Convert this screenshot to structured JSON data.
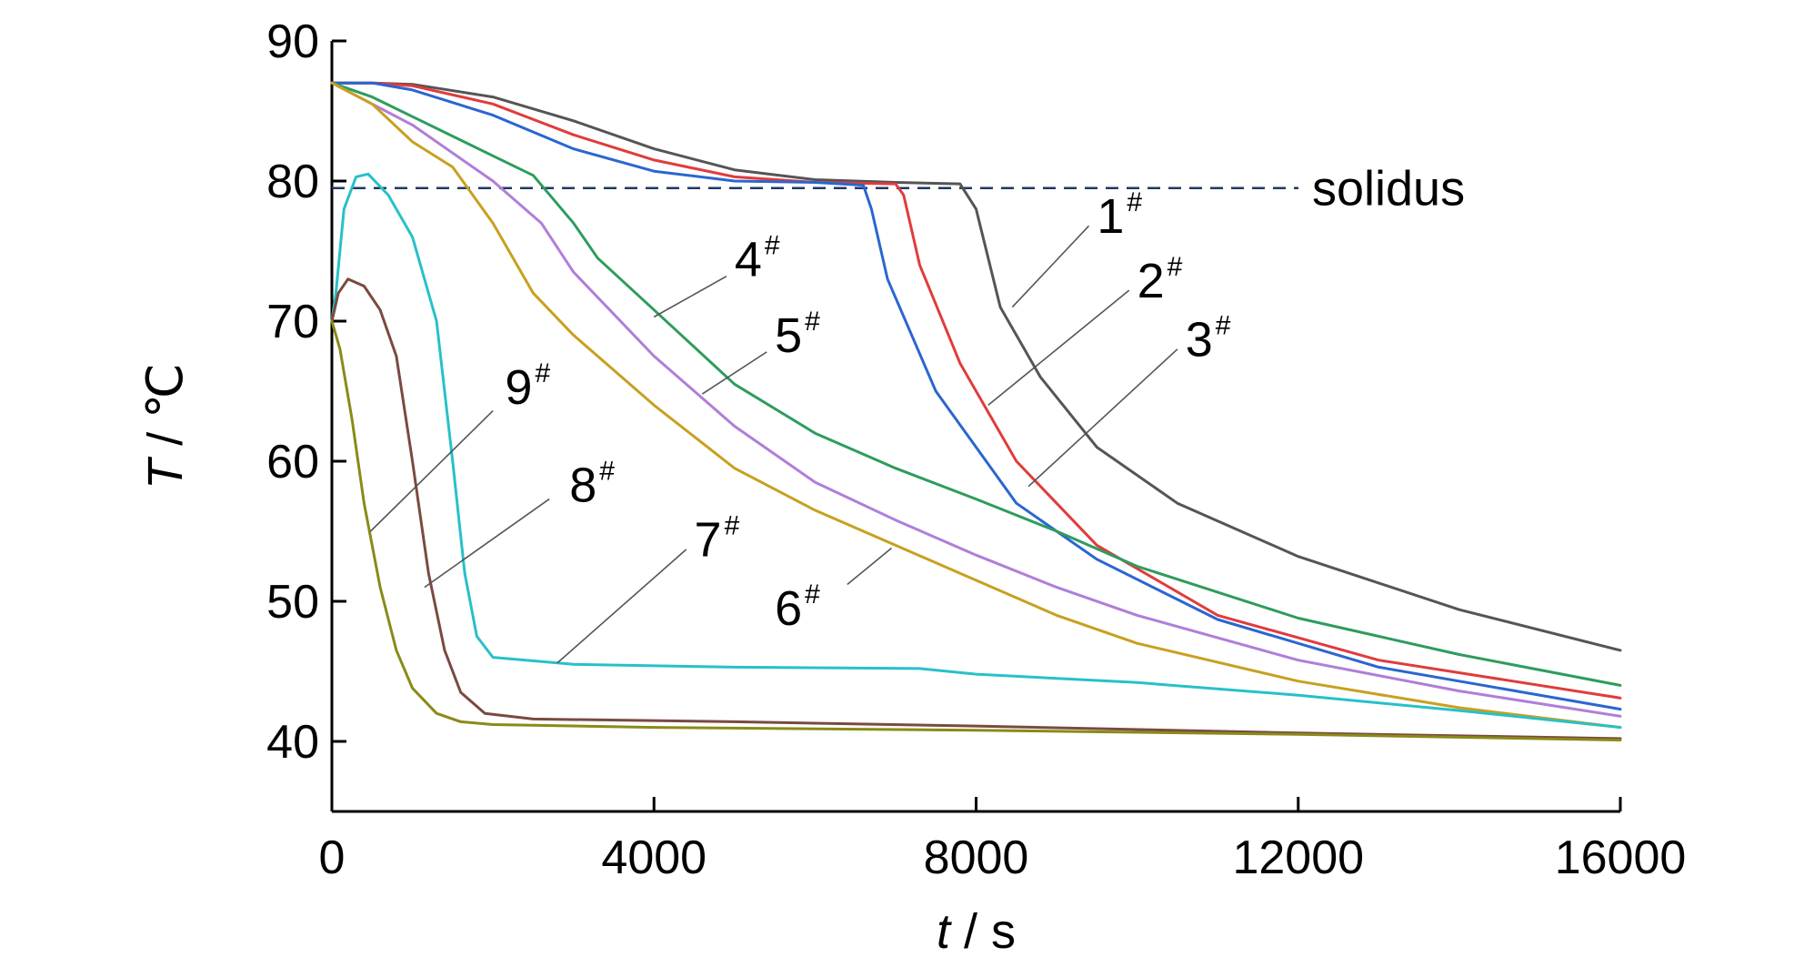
{
  "chart_data": {
    "type": "line",
    "title": "",
    "xlabel": {
      "var": "t",
      "unit": "s"
    },
    "ylabel": {
      "var": "T",
      "unit": "℃"
    },
    "xlim": [
      0,
      16000
    ],
    "ylim": [
      35,
      90
    ],
    "x_ticks": [
      0,
      4000,
      8000,
      12000,
      16000
    ],
    "y_ticks": [
      40,
      50,
      60,
      70,
      80,
      90
    ],
    "grid": false,
    "solidus": {
      "label": "solidus",
      "value": 79.5,
      "color": "#1f3864"
    },
    "series": [
      {
        "name": "1#",
        "color": "#555555",
        "points": [
          [
            0,
            87
          ],
          [
            500,
            87
          ],
          [
            1000,
            86.9
          ],
          [
            2000,
            86
          ],
          [
            3000,
            84.3
          ],
          [
            4000,
            82.3
          ],
          [
            5000,
            80.8
          ],
          [
            6000,
            80.1
          ],
          [
            7000,
            79.9
          ],
          [
            7800,
            79.8
          ],
          [
            8000,
            78
          ],
          [
            8300,
            71
          ],
          [
            8800,
            66
          ],
          [
            9500,
            61
          ],
          [
            10500,
            57
          ],
          [
            12000,
            53.2
          ],
          [
            14000,
            49.4
          ],
          [
            16000,
            46.5
          ]
        ]
      },
      {
        "name": "2#",
        "color": "#e03c3c",
        "points": [
          [
            0,
            87
          ],
          [
            500,
            87
          ],
          [
            1000,
            86.8
          ],
          [
            2000,
            85.5
          ],
          [
            3000,
            83.3
          ],
          [
            4000,
            81.5
          ],
          [
            5000,
            80.3
          ],
          [
            6000,
            79.9
          ],
          [
            7000,
            79.8
          ],
          [
            7100,
            79
          ],
          [
            7300,
            74
          ],
          [
            7800,
            67
          ],
          [
            8500,
            60
          ],
          [
            9500,
            54
          ],
          [
            11000,
            49
          ],
          [
            13000,
            45.8
          ],
          [
            16000,
            43.1
          ]
        ]
      },
      {
        "name": "3#",
        "color": "#2a66d0",
        "points": [
          [
            0,
            87
          ],
          [
            500,
            87
          ],
          [
            1000,
            86.5
          ],
          [
            2000,
            84.7
          ],
          [
            3000,
            82.3
          ],
          [
            4000,
            80.7
          ],
          [
            5000,
            80
          ],
          [
            6000,
            79.9
          ],
          [
            6600,
            79.7
          ],
          [
            6700,
            78
          ],
          [
            6900,
            73
          ],
          [
            7500,
            65
          ],
          [
            8500,
            57
          ],
          [
            9500,
            53
          ],
          [
            11000,
            48.7
          ],
          [
            13000,
            45.3
          ],
          [
            16000,
            42.3
          ]
        ]
      },
      {
        "name": "4#",
        "color": "#2e9c5e",
        "points": [
          [
            0,
            87
          ],
          [
            500,
            86
          ],
          [
            1000,
            84.6
          ],
          [
            2000,
            81.8
          ],
          [
            2500,
            80.4
          ],
          [
            3000,
            77
          ],
          [
            3300,
            74.5
          ],
          [
            4000,
            70.8
          ],
          [
            5000,
            65.5
          ],
          [
            6000,
            62
          ],
          [
            7000,
            59.5
          ],
          [
            8000,
            57.3
          ],
          [
            9000,
            55
          ],
          [
            10000,
            52.5
          ],
          [
            12000,
            48.8
          ],
          [
            14000,
            46.2
          ],
          [
            16000,
            44
          ]
        ]
      },
      {
        "name": "5#",
        "color": "#b07ed8",
        "points": [
          [
            0,
            87
          ],
          [
            500,
            85.5
          ],
          [
            1000,
            84
          ],
          [
            1500,
            82
          ],
          [
            2000,
            80
          ],
          [
            2600,
            77
          ],
          [
            3000,
            73.5
          ],
          [
            4000,
            67.5
          ],
          [
            5000,
            62.5
          ],
          [
            6000,
            58.5
          ],
          [
            7000,
            55.8
          ],
          [
            8000,
            53.3
          ],
          [
            9000,
            51
          ],
          [
            10000,
            49
          ],
          [
            12000,
            45.8
          ],
          [
            14000,
            43.6
          ],
          [
            16000,
            41.8
          ]
        ]
      },
      {
        "name": "6#",
        "color": "#c8a020",
        "points": [
          [
            0,
            87
          ],
          [
            500,
            85.5
          ],
          [
            1000,
            82.8
          ],
          [
            1500,
            81
          ],
          [
            2000,
            77
          ],
          [
            2500,
            72
          ],
          [
            3000,
            69
          ],
          [
            4000,
            64
          ],
          [
            5000,
            59.5
          ],
          [
            6000,
            56.5
          ],
          [
            7000,
            54
          ],
          [
            8000,
            51.5
          ],
          [
            9000,
            49
          ],
          [
            10000,
            47
          ],
          [
            12000,
            44.3
          ],
          [
            14000,
            42.4
          ],
          [
            16000,
            41
          ]
        ]
      },
      {
        "name": "7#",
        "color": "#28c0c8",
        "points": [
          [
            0,
            70
          ],
          [
            50,
            72
          ],
          [
            150,
            78
          ],
          [
            300,
            80.3
          ],
          [
            450,
            80.5
          ],
          [
            700,
            79
          ],
          [
            1000,
            76
          ],
          [
            1300,
            70
          ],
          [
            1500,
            60
          ],
          [
            1650,
            52
          ],
          [
            1800,
            47.5
          ],
          [
            2000,
            46
          ],
          [
            3000,
            45.5
          ],
          [
            5000,
            45.3
          ],
          [
            7300,
            45.2
          ],
          [
            8000,
            44.8
          ],
          [
            10000,
            44.2
          ],
          [
            12000,
            43.3
          ],
          [
            14000,
            42.2
          ],
          [
            16000,
            41
          ]
        ]
      },
      {
        "name": "8#",
        "color": "#7a4a40",
        "points": [
          [
            0,
            70
          ],
          [
            80,
            72
          ],
          [
            200,
            73
          ],
          [
            400,
            72.5
          ],
          [
            600,
            70.8
          ],
          [
            800,
            67.5
          ],
          [
            1000,
            60
          ],
          [
            1200,
            52
          ],
          [
            1400,
            46.5
          ],
          [
            1600,
            43.5
          ],
          [
            1900,
            42
          ],
          [
            2500,
            41.6
          ],
          [
            5000,
            41.4
          ],
          [
            8000,
            41.1
          ],
          [
            12000,
            40.6
          ],
          [
            16000,
            40.2
          ]
        ]
      },
      {
        "name": "9#",
        "color": "#8a8a18",
        "points": [
          [
            0,
            70
          ],
          [
            100,
            68
          ],
          [
            250,
            63
          ],
          [
            400,
            57
          ],
          [
            600,
            51
          ],
          [
            800,
            46.5
          ],
          [
            1000,
            43.8
          ],
          [
            1300,
            42
          ],
          [
            1600,
            41.4
          ],
          [
            2000,
            41.2
          ],
          [
            4000,
            41
          ],
          [
            8000,
            40.8
          ],
          [
            12000,
            40.5
          ],
          [
            16000,
            40.1
          ]
        ]
      }
    ],
    "callouts": [
      {
        "label": "1",
        "mark": "#",
        "text_at": [
          9500,
          76.3
        ],
        "line_from": [
          9400,
          76.8
        ],
        "line_to": [
          8450,
          71
        ]
      },
      {
        "label": "2",
        "mark": "#",
        "text_at": [
          10000,
          71.7
        ],
        "line_from": [
          9900,
          72.2
        ],
        "line_to": [
          8150,
          64
        ]
      },
      {
        "label": "3",
        "mark": "#",
        "text_at": [
          10600,
          67.5
        ],
        "line_from": [
          10500,
          68
        ],
        "line_to": [
          8650,
          58.2
        ]
      },
      {
        "label": "4",
        "mark": "#",
        "text_at": [
          5000,
          73.2
        ],
        "line_from": [
          4900,
          73.2
        ],
        "line_to": [
          4000,
          70.3
        ]
      },
      {
        "label": "5",
        "mark": "#",
        "text_at": [
          5500,
          67.8
        ],
        "line_from": [
          5400,
          67.8
        ],
        "line_to": [
          4600,
          64.8
        ]
      },
      {
        "label": "6",
        "mark": "#",
        "text_at": [
          5500,
          48.3
        ],
        "line_from": [
          6400,
          51.2
        ],
        "line_to": [
          6950,
          53.8
        ]
      },
      {
        "label": "7",
        "mark": "#",
        "text_at": [
          4500,
          53.2
        ],
        "line_from": [
          4400,
          53.7
        ],
        "line_to": [
          2800,
          45.6
        ]
      },
      {
        "label": "8",
        "mark": "#",
        "text_at": [
          2950,
          57.1
        ],
        "line_from": [
          2700,
          57.3
        ],
        "line_to": [
          1150,
          51
        ]
      },
      {
        "label": "9",
        "mark": "#",
        "text_at": [
          2150,
          64.1
        ],
        "line_from": [
          2000,
          63.6
        ],
        "line_to": [
          480,
          55
        ]
      }
    ]
  }
}
